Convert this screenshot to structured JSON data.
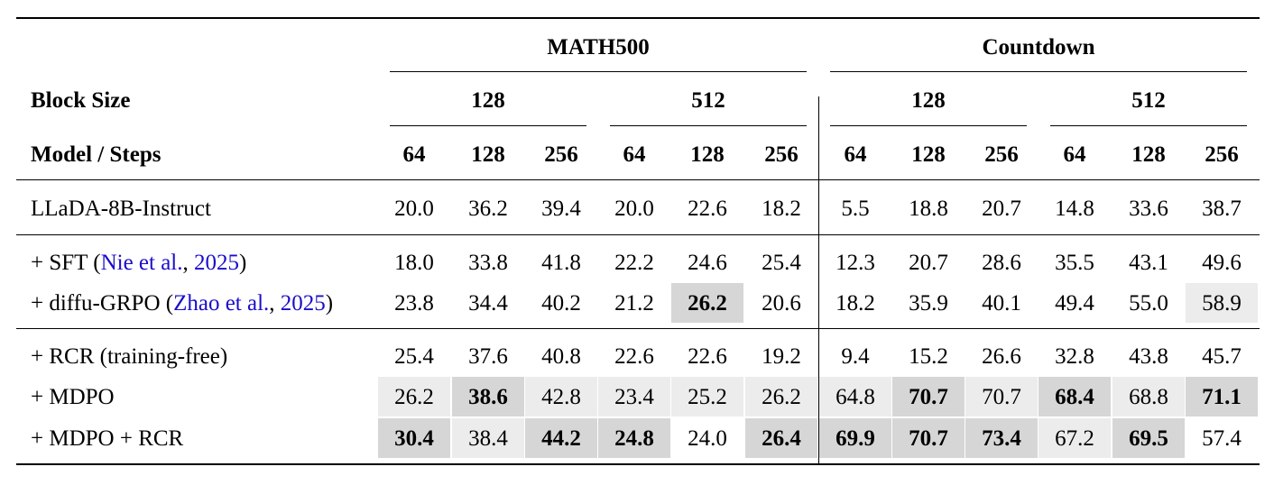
{
  "header": {
    "dataset_groups": [
      "MATH500",
      "Countdown"
    ],
    "block_size_label": "Block Size",
    "block_sizes": [
      "128",
      "512",
      "128",
      "512"
    ],
    "model_steps_label": "Model / Steps",
    "steps": [
      "64",
      "128",
      "256",
      "64",
      "128",
      "256",
      "64",
      "128",
      "256",
      "64",
      "128",
      "256"
    ]
  },
  "rows": [
    {
      "label_parts": [
        {
          "text": "LLaDA-8B-Instruct",
          "link": false
        }
      ],
      "values": [
        "20.0",
        "36.2",
        "39.4",
        "20.0",
        "22.6",
        "18.2",
        "5.5",
        "18.8",
        "20.7",
        "14.8",
        "33.6",
        "38.7"
      ],
      "bold": [],
      "shade": {}
    },
    {
      "label_parts": [
        {
          "text": "+ SFT (",
          "link": false
        },
        {
          "text": "Nie et al.",
          "link": true
        },
        {
          "text": ", ",
          "link": false
        },
        {
          "text": "2025",
          "link": true
        },
        {
          "text": ")",
          "link": false
        }
      ],
      "values": [
        "18.0",
        "33.8",
        "41.8",
        "22.2",
        "24.6",
        "25.4",
        "12.3",
        "20.7",
        "28.6",
        "35.5",
        "43.1",
        "49.6"
      ],
      "bold": [],
      "shade": {}
    },
    {
      "label_parts": [
        {
          "text": "+ diffu-GRPO (",
          "link": false
        },
        {
          "text": "Zhao et al.",
          "link": true
        },
        {
          "text": ", ",
          "link": false
        },
        {
          "text": "2025",
          "link": true
        },
        {
          "text": ")",
          "link": false
        }
      ],
      "values": [
        "23.8",
        "34.4",
        "40.2",
        "21.2",
        "26.2",
        "20.6",
        "18.2",
        "35.9",
        "40.1",
        "49.4",
        "55.0",
        "58.9"
      ],
      "bold": [
        4
      ],
      "shade": {
        "4": "dark",
        "11": "light"
      }
    },
    {
      "label_parts": [
        {
          "text": "+ RCR (training-free)",
          "link": false
        }
      ],
      "values": [
        "25.4",
        "37.6",
        "40.8",
        "22.6",
        "22.6",
        "19.2",
        "9.4",
        "15.2",
        "26.6",
        "32.8",
        "43.8",
        "45.7"
      ],
      "bold": [],
      "shade": {}
    },
    {
      "label_parts": [
        {
          "text": "+ MDPO",
          "link": false
        }
      ],
      "values": [
        "26.2",
        "38.6",
        "42.8",
        "23.4",
        "25.2",
        "26.2",
        "64.8",
        "70.7",
        "70.7",
        "68.4",
        "68.8",
        "71.1"
      ],
      "bold": [
        1,
        7,
        9,
        11
      ],
      "shade": {
        "0": "light",
        "1": "dark",
        "2": "light",
        "3": "light",
        "4": "light",
        "5": "light",
        "6": "light",
        "7": "dark",
        "8": "light",
        "9": "dark",
        "10": "light",
        "11": "dark"
      }
    },
    {
      "label_parts": [
        {
          "text": "+ MDPO + RCR",
          "link": false
        }
      ],
      "values": [
        "30.4",
        "38.4",
        "44.2",
        "24.8",
        "24.0",
        "26.4",
        "69.9",
        "70.7",
        "73.4",
        "67.2",
        "69.5",
        "57.4"
      ],
      "bold": [
        0,
        2,
        3,
        5,
        6,
        7,
        8,
        10
      ],
      "shade": {
        "0": "dark",
        "1": "light",
        "2": "dark",
        "3": "dark",
        "5": "dark",
        "6": "dark",
        "7": "dark",
        "8": "dark",
        "9": "light",
        "10": "dark"
      }
    }
  ],
  "colors": {
    "shade_dark": "#d6d6d6",
    "shade_light": "#ececec",
    "link": "#1a0dcc"
  }
}
